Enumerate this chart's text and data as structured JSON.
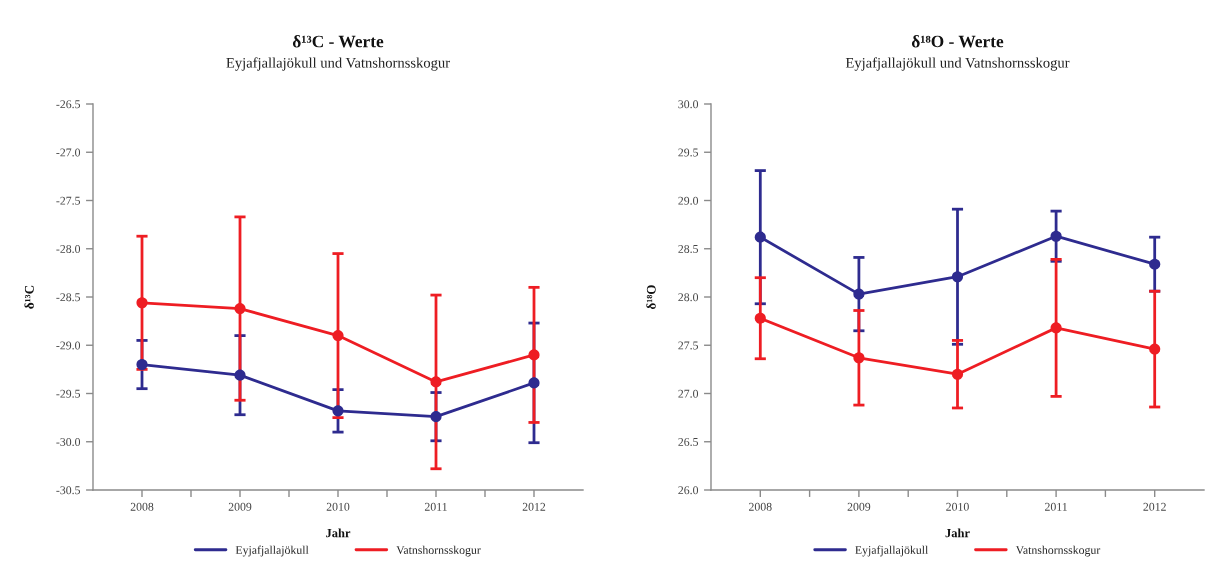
{
  "chart_data": [
    {
      "type": "line",
      "title": "δ¹³C - Werte",
      "subtitle": "Eyjafjallajökull und Vatnshornsskogur",
      "xlabel": "Jahr",
      "ylabel": "δ¹³C",
      "x": [
        2008,
        2009,
        2010,
        2011,
        2012
      ],
      "xlim": [
        2007.5,
        2012.5
      ],
      "xticks": [
        2008,
        {
          "value": 2008.5,
          "label": null
        },
        2009,
        {
          "value": 2009.5,
          "label": null
        },
        2010,
        {
          "value": 2010.5,
          "label": null
        },
        2011,
        {
          "value": 2011.5,
          "label": null
        },
        2012
      ],
      "ylim": [
        -30.5,
        -26.5
      ],
      "yticks": [
        -30.5,
        {
          "value": -30,
          "label": "-30.0"
        },
        -29.5,
        {
          "value": -29,
          "label": "-29.0"
        },
        -28.5,
        {
          "value": -28,
          "label": "-28.0"
        },
        -27.5,
        {
          "value": -27,
          "label": "-27.0"
        },
        -26.5
      ],
      "marker": "circle",
      "line_style": "solid",
      "legend": "bottom",
      "series": [
        {
          "name": "Eyjafjallajökull",
          "color": "#2e2b8f",
          "values": [
            -29.2,
            -29.31,
            -29.68,
            -29.74,
            -29.39
          ],
          "errors": [
            0.25,
            0.41,
            0.22,
            0.25,
            0.62
          ]
        },
        {
          "name": "Vatnshornsskogur",
          "color": "#ee1d23",
          "values": [
            -28.56,
            -28.62,
            -28.9,
            -29.38,
            -29.1
          ],
          "errors": [
            0.69,
            0.95,
            0.85,
            0.9,
            0.7
          ]
        }
      ]
    },
    {
      "type": "line",
      "title": "δ¹⁸O - Werte",
      "subtitle": "Eyjafjallajökull und Vatnshornsskogur",
      "xlabel": "Jahr",
      "ylabel": "δ¹⁸O",
      "x": [
        2008,
        2009,
        2010,
        2011,
        2012
      ],
      "xlim": [
        2007.5,
        2012.5
      ],
      "xticks": [
        2008,
        {
          "value": 2008.5,
          "label": null
        },
        2009,
        {
          "value": 2009.5,
          "label": null
        },
        2010,
        {
          "value": 2010.5,
          "label": null
        },
        2011,
        {
          "value": 2011.5,
          "label": null
        },
        2012
      ],
      "ylim": [
        26.0,
        30.0
      ],
      "yticks": [
        {
          "value": 26,
          "label": "26.0"
        },
        26.5,
        {
          "value": 27,
          "label": "27.0"
        },
        27.5,
        {
          "value": 28,
          "label": "28.0"
        },
        28.5,
        {
          "value": 29,
          "label": "29.0"
        },
        29.5,
        {
          "value": 30,
          "label": "30.0"
        }
      ],
      "marker": "circle",
      "line_style": "solid",
      "legend": "bottom",
      "series": [
        {
          "name": "Eyjafjallajökull",
          "color": "#2e2b8f",
          "values": [
            28.62,
            28.03,
            28.21,
            28.63,
            28.34
          ],
          "errors": [
            0.69,
            0.38,
            0.7,
            0.26,
            0.28
          ]
        },
        {
          "name": "Vatnshornsskogur",
          "color": "#ee1d23",
          "values": [
            27.78,
            27.37,
            27.2,
            27.68,
            27.46
          ],
          "errors": [
            0.42,
            0.49,
            0.35,
            0.71,
            0.6
          ]
        }
      ]
    }
  ]
}
